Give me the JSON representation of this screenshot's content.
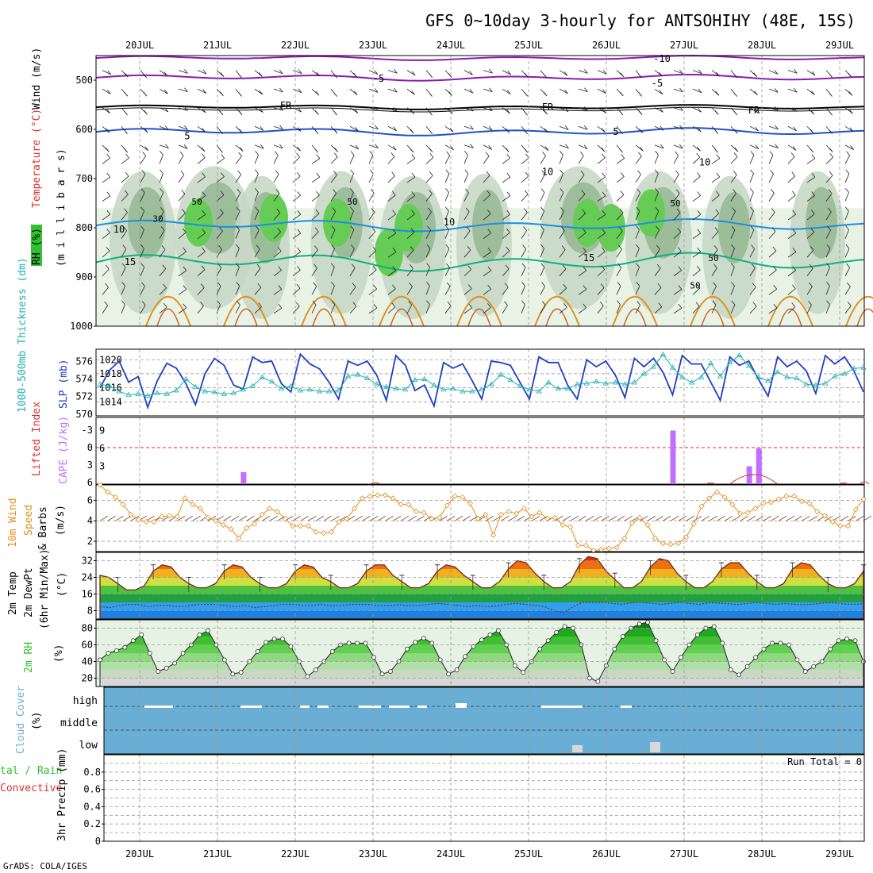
{
  "title": "GFS 0~10day 3-hourly for ANTSOHIHY (48E, 15S)",
  "footer": "GrADS: COLA/IGES",
  "dates": [
    "20JUL",
    "21JUL",
    "22JUL",
    "23JUL",
    "24JUL",
    "25JUL",
    "26JUL",
    "27JUL",
    "28JUL",
    "29JUL"
  ],
  "colors": {
    "thk": "#20b0b0",
    "slp": "#2040c0",
    "cape": "#c070ff",
    "li": "#e03030",
    "wind": "#e09020",
    "cloud": "#6aaed6",
    "rh": "#30c030",
    "purple": "#8a1ab0",
    "blue": "#2050d0",
    "cyan": "#1890e0",
    "teal": "#10b080"
  },
  "chart_data": [
    {
      "type": "heatmap",
      "name": "upper",
      "ylabel_parts": [
        "RH (%)",
        "Temperature (°C)",
        "Wind (m/s)"
      ],
      "yaxis_label": "(m i l l i b a r s)",
      "ylim": [
        1000,
        450
      ],
      "ticks": [
        "500",
        "600",
        "700",
        "800",
        "900",
        "1000"
      ],
      "contour_labels": [
        "-10",
        "-5",
        "-5",
        "FR",
        "FR",
        "FR",
        "5",
        "5",
        "10",
        "10",
        "10",
        "10",
        "15",
        "15",
        "30",
        "50",
        "50",
        "50",
        "50",
        "50"
      ]
    },
    {
      "type": "line",
      "name": "slp_thickness",
      "y_left_label": "1000-500mb Thickness (dm)",
      "y_right_label": "SLP (mb)",
      "left_ticks": [
        "570",
        "572",
        "574",
        "576"
      ],
      "right_ticks": [
        "1014",
        "1016",
        "1018",
        "1020"
      ],
      "slp": [
        1016,
        1018.5,
        1019.8,
        1016.8,
        1017.6,
        1013.2,
        1017,
        1019.5,
        1018.8,
        1016.6,
        1013.6,
        1018,
        1020.2,
        1019.2,
        1016.4,
        1015.8,
        1020.4,
        1019.6,
        1019.8,
        1016.6,
        1015.4,
        1020.8,
        1019.4,
        1018.7,
        1016.8,
        1014.4,
        1019.8,
        1019.2,
        1019.8,
        1017.8,
        1014.2,
        1020.6,
        1019.2,
        1015.6,
        1016.4,
        1013.4,
        1019.6,
        1018.8,
        1019.4,
        1017,
        1014.4,
        1019.8,
        1019.6,
        1019.2,
        1016.8,
        1014.4,
        1020.4,
        1019.6,
        1019.6,
        1016.4,
        1014.4,
        1020,
        1019,
        1019.8,
        1017.8,
        1014.6,
        1020.2,
        1019,
        1020.2,
        1018.2,
        1015,
        1020.6,
        1019.4,
        1019.4,
        1016.8,
        1014.2,
        1020.4,
        1019.2,
        1019.8,
        1017.2,
        1014.8,
        1020.4,
        1019,
        1019.8,
        1018.4,
        1015.2,
        1020.6,
        1019.4,
        1020.4,
        1018.4,
        1015.4
      ],
      "thickness": [
        573.4,
        573.2,
        572.6,
        572.2,
        572.3,
        572.1,
        572.4,
        572.3,
        572.7,
        574,
        573.1,
        572.6,
        572.5,
        572.3,
        572.4,
        572.8,
        573.2,
        574.2,
        573.7,
        572.9,
        573.2,
        572.7,
        572.8,
        572.6,
        572.6,
        572.7,
        574.3,
        574.5,
        574.1,
        573.4,
        573.1,
        572.9,
        572.8,
        573.9,
        574,
        573.3,
        572.8,
        572.9,
        572.6,
        572.6,
        572.8,
        573.4,
        574.5,
        573.9,
        573.2,
        572.8,
        572.6,
        573.6,
        572.9,
        572.9,
        573.4,
        573.5,
        573.7,
        573.5,
        573.6,
        573.4,
        573.6,
        574.6,
        575.4,
        576.8,
        575.3,
        574.2,
        573.6,
        574.2,
        575.8,
        574.3,
        575.9,
        576.7,
        575.5,
        574.2,
        573.8,
        574.8,
        574.2,
        574.1,
        573.4,
        573.3,
        573.5,
        574.3,
        574.6,
        575.2,
        575.3
      ]
    },
    {
      "type": "bar",
      "name": "cape_li",
      "y_left_label": "Lifted Index",
      "y_right_label": "CAPE (J/kg)",
      "li_ticks": [
        "-3",
        "0",
        "3",
        "6"
      ],
      "cape_ticks": [
        "3",
        "6",
        "9"
      ],
      "cape_x": [
        15,
        60,
        68,
        69
      ],
      "cape": [
        2,
        9,
        3,
        6
      ]
    },
    {
      "type": "line",
      "name": "wind10m",
      "ylabel": "10m Wind Speed & Barbs (m/s)",
      "ylabel_parts": [
        "10m Wind",
        "Speed",
        "& Barbs"
      ],
      "ticks": [
        "2",
        "4",
        "6"
      ],
      "ylim": [
        1,
        7.5
      ],
      "speed": [
        7.5,
        6.8,
        6.3,
        5.6,
        4.6,
        4.1,
        3.9,
        3.9,
        4.4,
        4.5,
        4.4,
        6.2,
        5.6,
        5.2,
        4.3,
        4,
        3.6,
        3.2,
        2.3,
        3.3,
        3.7,
        4.6,
        5.2,
        4.9,
        4.2,
        3.5,
        3.5,
        3.5,
        2.9,
        2.8,
        2.9,
        3.9,
        4.2,
        5.2,
        6.2,
        6.4,
        6.5,
        6.5,
        6.2,
        5.6,
        5.6,
        4.9,
        4.8,
        4.2,
        4.3,
        5.5,
        6.4,
        6.3,
        5.7,
        4.2,
        4.6,
        2.6,
        4.6,
        4.9,
        4.7,
        5.2,
        4.4,
        4.8,
        4.2,
        4.3,
        3.6,
        3.4,
        1.6,
        1.6,
        1.1,
        1.2,
        1.3,
        1.4,
        2.3,
        3.8,
        4.3,
        3.6,
        2.3,
        1.8,
        1.7,
        1.8,
        2.4,
        3.7,
        5.4,
        6.2,
        6.8,
        6.3,
        5.6,
        4.7,
        4.8,
        5.2,
        5.7,
        5.8,
        6.1,
        6.4,
        6.4,
        5.9,
        5.7,
        4.9,
        4.5,
        3.9,
        3.5,
        3.5,
        5.1,
        6.1
      ]
    },
    {
      "type": "area",
      "name": "temp2m",
      "ylabel_parts": [
        "2m Temp",
        "2m DewPt",
        "(6hr Min/Max)"
      ],
      "unit": "(°C)",
      "ticks": [
        "8",
        "16",
        "24",
        "32"
      ],
      "ylim": [
        4,
        36
      ],
      "temp": [
        25,
        24,
        21,
        18,
        18,
        20,
        27,
        30,
        29,
        24,
        21,
        19,
        19,
        21,
        27,
        30,
        29,
        24,
        21,
        19,
        19,
        21,
        27,
        30,
        29,
        24,
        22,
        19,
        19,
        21,
        27,
        30,
        30,
        25,
        22,
        19,
        19,
        21,
        27,
        30,
        29,
        25,
        22,
        19,
        19,
        22,
        28,
        32,
        31,
        26,
        22,
        19,
        19,
        22,
        30,
        34,
        33,
        27,
        23,
        19,
        19,
        22,
        29,
        33,
        32,
        26,
        22,
        19,
        19,
        22,
        28,
        31,
        31,
        26,
        22,
        19,
        19,
        21,
        28,
        31,
        30,
        25,
        21,
        19,
        19,
        21,
        27
      ],
      "dew": [
        10,
        9.5,
        10.5,
        11,
        11,
        10,
        10.5,
        10.5,
        10,
        10.3,
        11,
        11,
        11,
        10.5,
        10,
        10.5,
        9.5,
        10,
        10.5,
        11,
        11,
        10.5,
        10.5,
        11,
        10.3,
        10.5,
        11,
        11,
        11,
        10.3,
        10.5,
        10.8,
        10.4,
        10.5,
        11,
        11.5,
        11,
        10.5,
        10,
        10.5,
        10,
        10.3,
        11,
        11.5,
        11,
        10.5,
        10,
        8,
        7,
        10,
        12,
        12,
        12,
        11.5,
        11,
        11.8,
        12,
        11.6,
        11,
        11.5,
        12,
        11.5,
        11,
        11.8,
        11.7,
        11.3,
        10.9,
        11.5,
        12,
        11.4,
        11,
        11.4,
        11,
        10.9,
        11.2,
        11.8,
        11.8,
        11.2,
        11,
        11.3
      ]
    },
    {
      "type": "area",
      "name": "rh2m",
      "ylabel": "2m RH",
      "unit": "(%)",
      "ticks": [
        "20",
        "40",
        "60",
        "80"
      ],
      "ylim": [
        10,
        90
      ],
      "rh": [
        42,
        50,
        53,
        57,
        65,
        72,
        50,
        28,
        32,
        38,
        50,
        60,
        72,
        77,
        60,
        42,
        25,
        27,
        40,
        52,
        63,
        67,
        67,
        58,
        40,
        22,
        30,
        40,
        52,
        60,
        62,
        62,
        62,
        45,
        25,
        28,
        40,
        55,
        63,
        68,
        62,
        42,
        25,
        30,
        46,
        58,
        66,
        72,
        77,
        60,
        35,
        27,
        40,
        55,
        65,
        75,
        82,
        80,
        60,
        20,
        16,
        35,
        55,
        70,
        80,
        85,
        87,
        65,
        42,
        28,
        45,
        60,
        72,
        80,
        82,
        62,
        30,
        24,
        34,
        45,
        55,
        62,
        62,
        60,
        42,
        28,
        34,
        40,
        55,
        65,
        67,
        65,
        40
      ]
    },
    {
      "type": "heatmap",
      "name": "cloud",
      "ylabel": "Cloud Cover (%)",
      "yaxis_label": "(%)",
      "levels": [
        "high",
        "middle",
        "low"
      ]
    },
    {
      "type": "bar",
      "name": "precip",
      "ylabel": "3hr Precip (mm)",
      "legend_left": [
        "tal / Rain",
        "Convective"
      ],
      "ticks": [
        "0",
        "0.2",
        "0.4",
        "0.6",
        "0.8"
      ],
      "ylim": [
        0,
        1
      ],
      "run_total": "Run Total = 0"
    }
  ]
}
